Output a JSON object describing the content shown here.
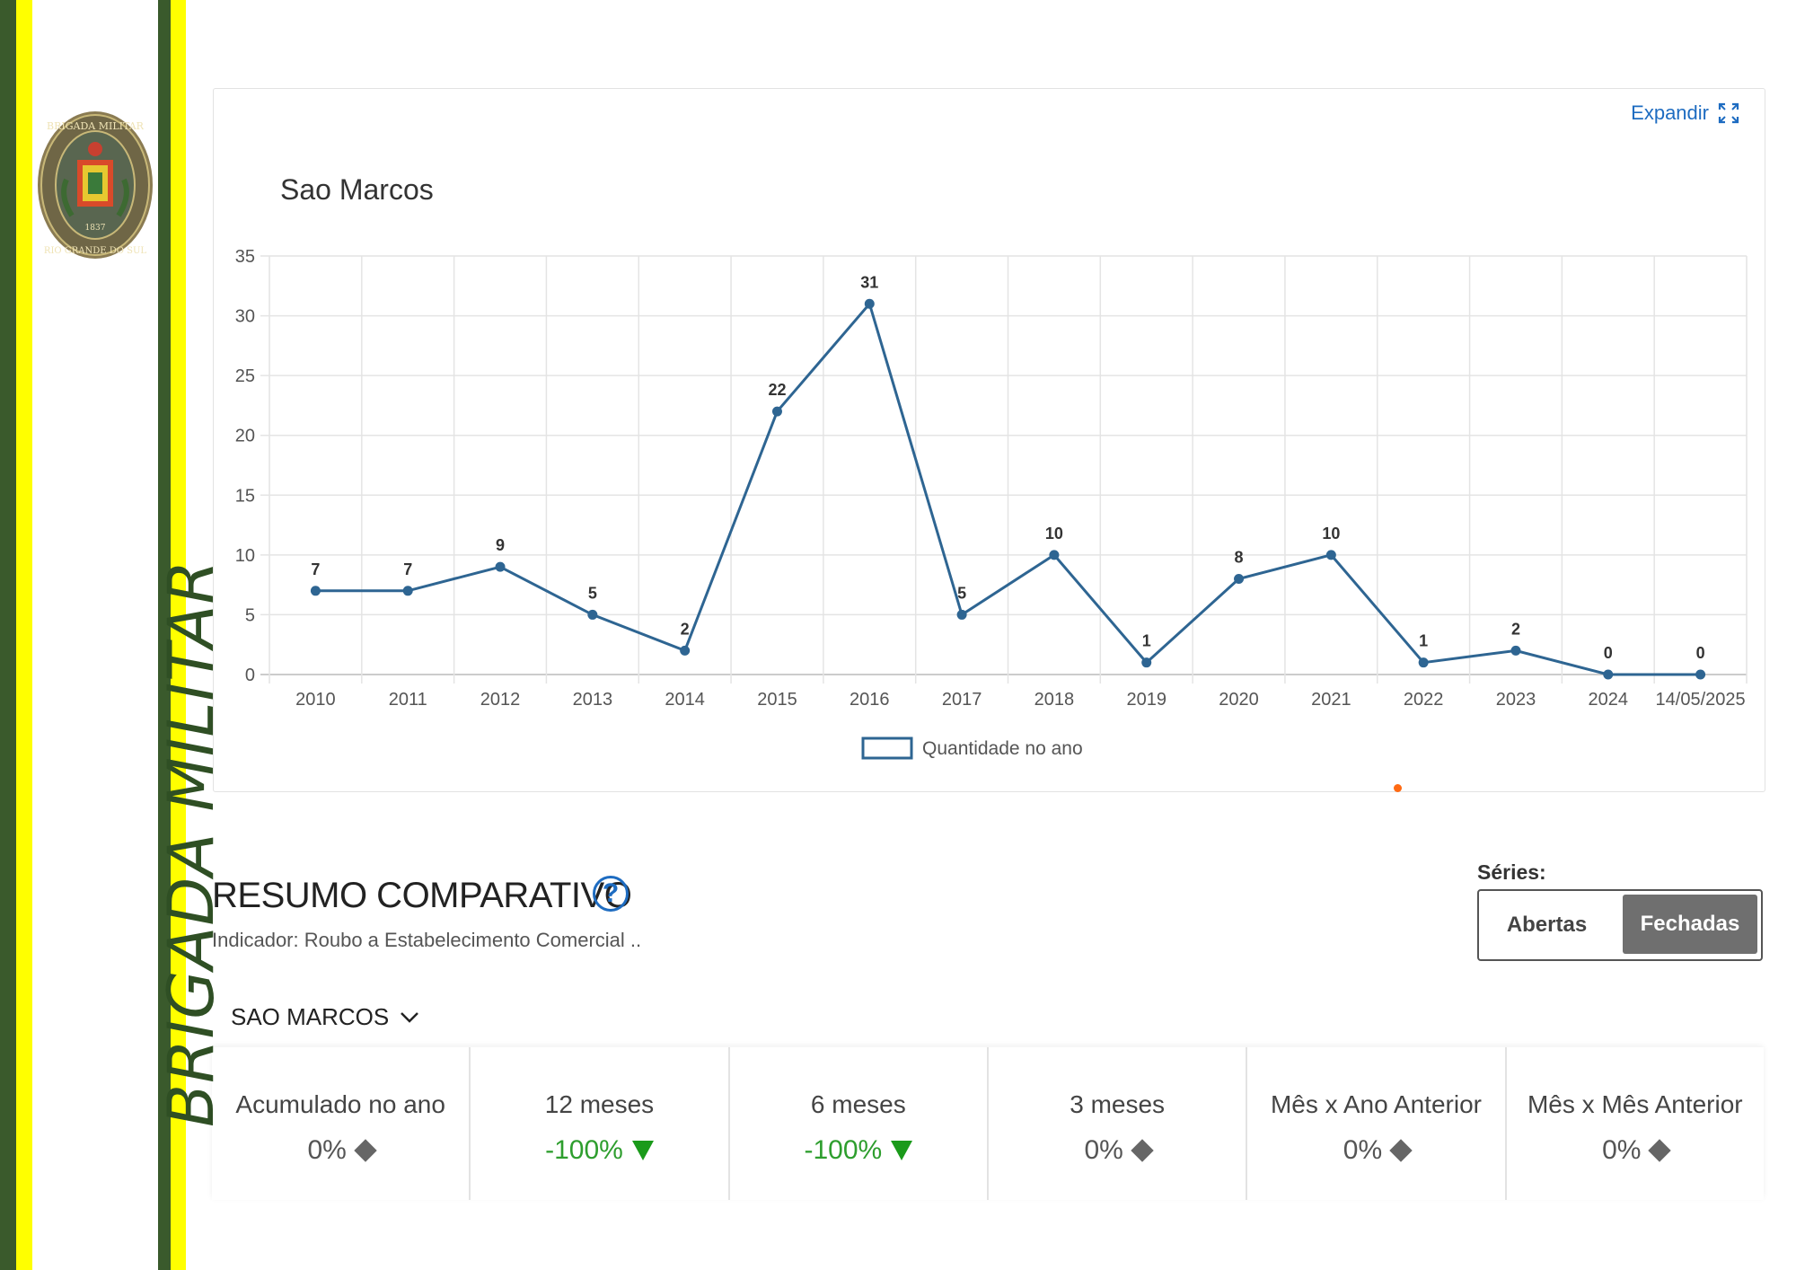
{
  "sidebar": {
    "vertical_text": "BRIGADA MILITAR",
    "emblem_text_top": "BRIGADA MILITAR",
    "emblem_text_bottom": "RIO GRANDE DO SUL",
    "emblem_year": "1837",
    "colors": {
      "green": "#3a5a2c",
      "yellow": "#ffff00"
    }
  },
  "chart_card": {
    "expand_label": "Expandir",
    "title": "Sao Marcos"
  },
  "chart_data": {
    "type": "line",
    "title": "Sao Marcos",
    "categories": [
      "2010",
      "2011",
      "2012",
      "2013",
      "2014",
      "2015",
      "2016",
      "2017",
      "2018",
      "2019",
      "2020",
      "2021",
      "2022",
      "2023",
      "2024",
      "14/05/2025"
    ],
    "series": [
      {
        "name": "Quantidade no ano",
        "values": [
          7,
          7,
          9,
          5,
          2,
          22,
          31,
          5,
          10,
          1,
          8,
          10,
          1,
          2,
          0,
          0
        ],
        "color": "#2e6592"
      }
    ],
    "ylim": [
      0,
      35
    ],
    "yticks": [
      0,
      5,
      10,
      15,
      20,
      25,
      30,
      35
    ],
    "grid": true,
    "legend": "bottom",
    "data_labels": true
  },
  "resumo": {
    "title": "RESUMO COMPARATIVO",
    "help_icon": "?",
    "indicador": "Indicador: Roubo a Estabelecimento Comercial ..",
    "series_label": "Séries:",
    "series_options": [
      "Abertas",
      "Fechadas"
    ],
    "series_selected": "Fechadas",
    "city": "SAO MARCOS",
    "metrics": [
      {
        "label": "Acumulado no ano",
        "value": "0%",
        "trend": "neutral"
      },
      {
        "label": "12 meses",
        "value": "-100%",
        "trend": "down"
      },
      {
        "label": "6 meses",
        "value": "-100%",
        "trend": "down"
      },
      {
        "label": "3 meses",
        "value": "0%",
        "trend": "neutral"
      },
      {
        "label": "Mês x Ano Anterior",
        "value": "0%",
        "trend": "neutral"
      },
      {
        "label": "Mês x Mês Anterior",
        "value": "0%",
        "trend": "neutral"
      }
    ]
  }
}
